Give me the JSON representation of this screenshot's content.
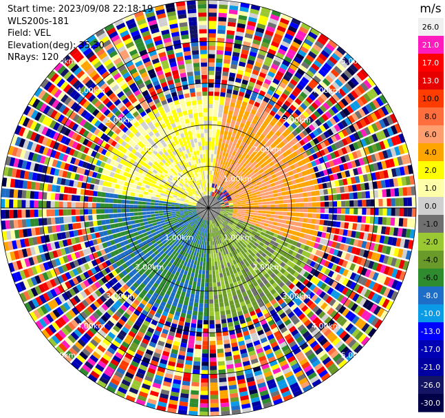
{
  "header": {
    "start_time": "Start time: 2023/09/08 22:18:19",
    "instrument": "WLS200s-181",
    "field": "Field: VEL",
    "elevation": "Elevation(deg): 35.30",
    "nrays": "NRays: 120"
  },
  "chart_data": {
    "type": "ppi-scan",
    "field": "VEL",
    "units": "m/s",
    "rings_km": [
      1.0,
      2.0,
      3.0,
      4.0,
      5.0
    ],
    "ring_labels": [
      "1.00km",
      "2.00km",
      "3.00km",
      "4.00km",
      "5.00km"
    ],
    "max_range_km": 5.0,
    "nrays": 120,
    "colorbar": {
      "title": "m/s",
      "ticks": [
        "26.0",
        "21.0",
        "17.0",
        "13.0",
        "10.0",
        "8.0",
        "6.0",
        "4.0",
        "2.0",
        "1.0",
        "0.0",
        "-1.0",
        "-2.0",
        "-4.0",
        "-6.0",
        "-8.0",
        "-10.0",
        "-13.0",
        "-17.0",
        "-21.0",
        "-26.0",
        "-30.0"
      ],
      "colors": [
        "#f0f0f0",
        "#ff1cbe",
        "#ff0000",
        "#e60000",
        "#ff3c00",
        "#ff6e3c",
        "#ff9e6e",
        "#ffa500",
        "#ffff00",
        "#ffffaa",
        "#d0d0d0",
        "#707070",
        "#9ac832",
        "#6a9a2a",
        "#2e8b2e",
        "#1e6ec8",
        "#0a9ae6",
        "#0000ff",
        "#0000b4",
        "#0000a0",
        "#141464",
        "#000046"
      ]
    },
    "sectors": [
      {
        "azimuth_from_deg": 10,
        "azimuth_to_deg": 110,
        "range_km": [
          0.6,
          3.0
        ],
        "velocity_ms": 6.0
      },
      {
        "azimuth_from_deg": -80,
        "azimuth_to_deg": 10,
        "range_km": [
          0.3,
          3.0
        ],
        "velocity_ms": 2.0
      },
      {
        "azimuth_from_deg": 90,
        "azimuth_to_deg": 180,
        "range_km": [
          0.3,
          2.8
        ],
        "velocity_ms": -2.0
      },
      {
        "azimuth_from_deg": 180,
        "azimuth_to_deg": 280,
        "range_km": [
          0.3,
          3.0
        ],
        "velocity_ms": -6.0
      }
    ]
  }
}
